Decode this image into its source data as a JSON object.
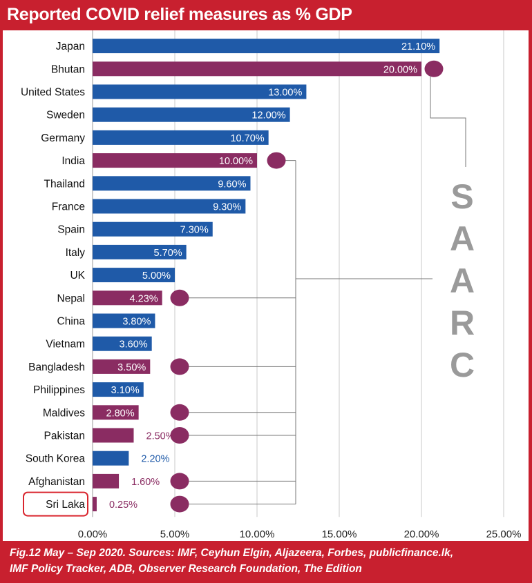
{
  "header": {
    "title": "Reported COVID relief measures as % GDP"
  },
  "footer": {
    "line1": "Fig.12 May – Sep 2020. Sources: IMF, Ceyhun Elgin, Aljazeera, Forbes, publicfinance.lk,",
    "line2": "IMF Policy Tracker, ADB, Observer Research Foundation, The Edition"
  },
  "colors": {
    "frame": "#c8202f",
    "non_saarc_bar": "#1f5aa8",
    "saarc_bar": "#8a2c62",
    "saarc_label": "#9a9a9a",
    "highlight_box": "#d9252e",
    "grid": "#c8c8c8"
  },
  "chart_data": {
    "type": "bar",
    "orientation": "horizontal",
    "title": "Reported COVID relief measures as % GDP",
    "xlim": [
      0,
      25
    ],
    "x_ticks": [
      "0.00%",
      "5.00%",
      "10.00%",
      "15.00%",
      "20.00%",
      "25.00%"
    ],
    "grid": true,
    "categories": [
      "Japan",
      "Bhutan",
      "United States",
      "Sweden",
      "Germany",
      "India",
      "Thailand",
      "France",
      "Spain",
      "Italy",
      "UK",
      "Nepal",
      "China",
      "Vietnam",
      "Bangladesh",
      "Philippines",
      "Maldives",
      "Pakistan",
      "South Korea",
      "Afghanistan",
      "Sri Laka"
    ],
    "values": [
      21.1,
      20.0,
      13.0,
      12.0,
      10.7,
      10.0,
      9.6,
      9.3,
      7.3,
      5.7,
      5.0,
      4.23,
      3.8,
      3.6,
      3.5,
      3.1,
      2.8,
      2.5,
      2.2,
      1.6,
      0.25
    ],
    "value_labels": [
      "21.10%",
      "20.00%",
      "13.00%",
      "12.00%",
      "10.70%",
      "10.00%",
      "9.60%",
      "9.30%",
      "7.30%",
      "5.70%",
      "5.00%",
      "4.23%",
      "3.80%",
      "3.60%",
      "3.50%",
      "3.10%",
      "2.80%",
      "2.50%",
      "2.20%",
      "1.60%",
      "0.25%"
    ],
    "saarc": [
      false,
      true,
      false,
      false,
      false,
      true,
      false,
      false,
      false,
      false,
      false,
      true,
      false,
      false,
      true,
      false,
      true,
      true,
      false,
      true,
      true
    ],
    "group_label": "SAARC",
    "highlighted_category": "Sri Laka"
  }
}
